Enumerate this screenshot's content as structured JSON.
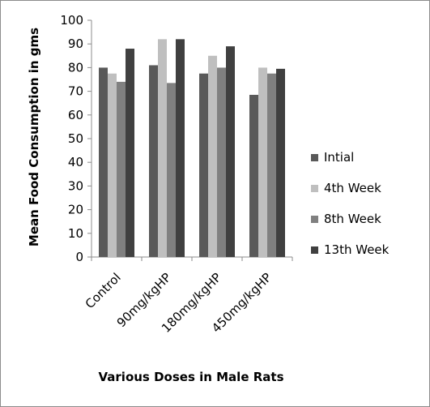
{
  "chart_data": {
    "type": "bar",
    "title": "",
    "xlabel": "Various Doses in Male Rats",
    "ylabel": "Mean Food Consumption in gms",
    "ylim": [
      0,
      100
    ],
    "yticks": [
      0,
      10,
      20,
      30,
      40,
      50,
      60,
      70,
      80,
      90,
      100
    ],
    "grid": false,
    "legend_position": "right",
    "categories": [
      "Control",
      "90mg/kgHP",
      "180mg/kgHP",
      "450mg/kgHP"
    ],
    "series": [
      {
        "name": "Intial",
        "color": "#595959",
        "values": [
          80,
          81,
          77.5,
          68.5
        ]
      },
      {
        "name": "4th Week",
        "color": "#bfbfbf",
        "values": [
          77.5,
          92,
          85,
          80
        ]
      },
      {
        "name": "8th Week",
        "color": "#808080",
        "values": [
          74,
          73.5,
          80,
          77.5
        ]
      },
      {
        "name": "13th Week",
        "color": "#404040",
        "values": [
          88,
          92,
          89,
          79.5
        ]
      }
    ]
  }
}
